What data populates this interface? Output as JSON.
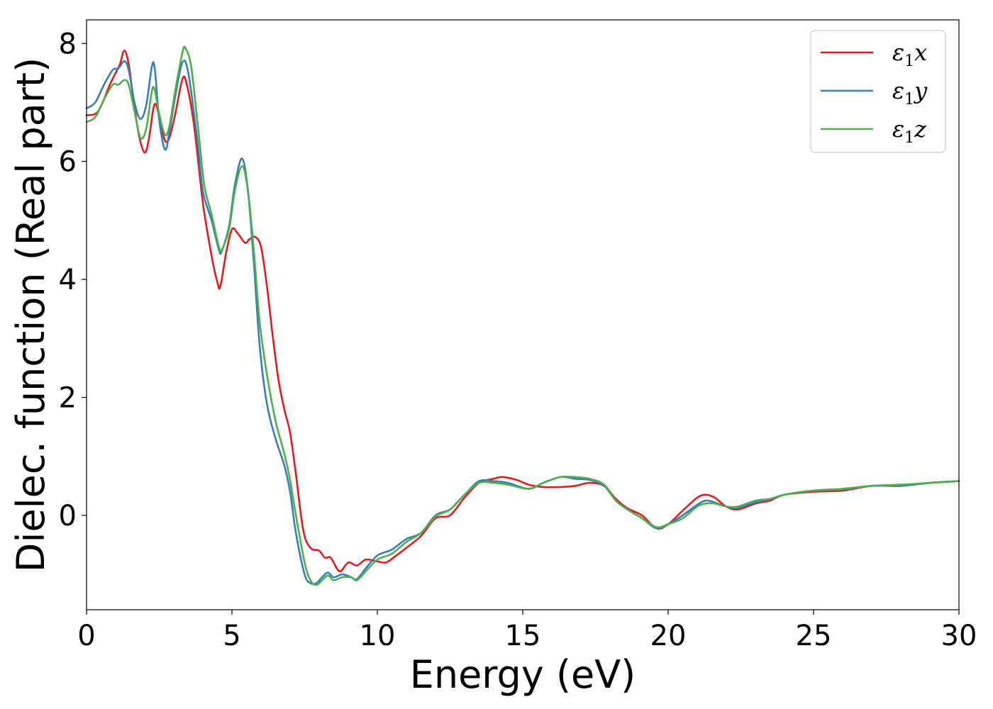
{
  "chart_data": {
    "type": "line",
    "title": "",
    "xlabel": "Energy (eV)",
    "ylabel": "Dielec. function (Real part)",
    "xlim": [
      0,
      30
    ],
    "ylim": [
      -1.6,
      8.4
    ],
    "xticks": [
      0,
      5,
      10,
      15,
      20,
      25,
      30
    ],
    "yticks": [
      0,
      2,
      4,
      6,
      8
    ],
    "grid": false,
    "legend_position": "top-right",
    "series": [
      {
        "name": "ε1x",
        "legend_base": "ε",
        "legend_sub": "1",
        "legend_var": "x",
        "color": "#e41a1c",
        "points": [
          [
            0,
            6.78
          ],
          [
            0.4,
            6.85
          ],
          [
            0.8,
            7.3
          ],
          [
            1.0,
            7.5
          ],
          [
            1.15,
            7.65
          ],
          [
            1.3,
            7.88
          ],
          [
            1.45,
            7.65
          ],
          [
            1.6,
            7.1
          ],
          [
            1.8,
            6.45
          ],
          [
            2.0,
            6.15
          ],
          [
            2.15,
            6.4
          ],
          [
            2.3,
            6.9
          ],
          [
            2.4,
            6.95
          ],
          [
            2.55,
            6.65
          ],
          [
            2.7,
            6.35
          ],
          [
            2.85,
            6.4
          ],
          [
            3.05,
            6.8
          ],
          [
            3.3,
            7.4
          ],
          [
            3.45,
            7.3
          ],
          [
            3.7,
            6.6
          ],
          [
            4.0,
            5.3
          ],
          [
            4.3,
            4.4
          ],
          [
            4.5,
            3.95
          ],
          [
            4.6,
            3.88
          ],
          [
            4.8,
            4.45
          ],
          [
            5.0,
            4.85
          ],
          [
            5.2,
            4.78
          ],
          [
            5.45,
            4.62
          ],
          [
            5.6,
            4.68
          ],
          [
            5.8,
            4.72
          ],
          [
            6.0,
            4.55
          ],
          [
            6.2,
            3.9
          ],
          [
            6.4,
            3.05
          ],
          [
            6.6,
            2.3
          ],
          [
            6.8,
            1.8
          ],
          [
            7.0,
            1.4
          ],
          [
            7.2,
            0.7
          ],
          [
            7.45,
            -0.25
          ],
          [
            7.7,
            -0.55
          ],
          [
            8.0,
            -0.6
          ],
          [
            8.2,
            -0.72
          ],
          [
            8.4,
            -0.72
          ],
          [
            8.7,
            -0.95
          ],
          [
            9.0,
            -0.8
          ],
          [
            9.3,
            -0.85
          ],
          [
            9.6,
            -0.75
          ],
          [
            10.0,
            -0.78
          ],
          [
            10.3,
            -0.8
          ],
          [
            10.6,
            -0.7
          ],
          [
            11.0,
            -0.55
          ],
          [
            11.5,
            -0.35
          ],
          [
            12.0,
            -0.05
          ],
          [
            12.5,
            0.0
          ],
          [
            13.0,
            0.3
          ],
          [
            13.5,
            0.55
          ],
          [
            14.0,
            0.62
          ],
          [
            14.3,
            0.65
          ],
          [
            14.8,
            0.6
          ],
          [
            15.2,
            0.52
          ],
          [
            15.7,
            0.48
          ],
          [
            16.3,
            0.48
          ],
          [
            16.8,
            0.5
          ],
          [
            17.3,
            0.55
          ],
          [
            17.8,
            0.5
          ],
          [
            18.2,
            0.28
          ],
          [
            18.6,
            0.12
          ],
          [
            19.1,
            0.0
          ],
          [
            19.6,
            -0.22
          ],
          [
            20.0,
            -0.15
          ],
          [
            20.5,
            0.08
          ],
          [
            21.0,
            0.3
          ],
          [
            21.3,
            0.35
          ],
          [
            21.6,
            0.3
          ],
          [
            22.0,
            0.15
          ],
          [
            22.4,
            0.1
          ],
          [
            23.0,
            0.2
          ],
          [
            23.5,
            0.25
          ],
          [
            24.0,
            0.35
          ],
          [
            25.0,
            0.4
          ],
          [
            26.0,
            0.42
          ],
          [
            27.0,
            0.5
          ],
          [
            28.0,
            0.5
          ],
          [
            29.0,
            0.55
          ],
          [
            30.0,
            0.58
          ]
        ]
      },
      {
        "name": "ε1y",
        "legend_base": "ε",
        "legend_sub": "1",
        "legend_var": "y",
        "color": "#377eb8",
        "points": [
          [
            0,
            6.9
          ],
          [
            0.3,
            7.0
          ],
          [
            0.6,
            7.3
          ],
          [
            0.9,
            7.55
          ],
          [
            1.1,
            7.58
          ],
          [
            1.3,
            7.7
          ],
          [
            1.45,
            7.55
          ],
          [
            1.65,
            7.0
          ],
          [
            1.85,
            6.72
          ],
          [
            2.05,
            6.95
          ],
          [
            2.25,
            7.62
          ],
          [
            2.35,
            7.55
          ],
          [
            2.5,
            6.7
          ],
          [
            2.7,
            6.2
          ],
          [
            2.85,
            6.5
          ],
          [
            3.05,
            7.1
          ],
          [
            3.3,
            7.68
          ],
          [
            3.5,
            7.5
          ],
          [
            3.8,
            6.4
          ],
          [
            4.0,
            5.5
          ],
          [
            4.3,
            5.0
          ],
          [
            4.55,
            4.5
          ],
          [
            4.65,
            4.48
          ],
          [
            4.9,
            4.9
          ],
          [
            5.1,
            5.6
          ],
          [
            5.35,
            6.05
          ],
          [
            5.55,
            5.5
          ],
          [
            5.75,
            4.3
          ],
          [
            5.95,
            2.9
          ],
          [
            6.2,
            1.9
          ],
          [
            6.5,
            1.3
          ],
          [
            6.8,
            0.85
          ],
          [
            7.0,
            0.4
          ],
          [
            7.2,
            -0.3
          ],
          [
            7.5,
            -1.0
          ],
          [
            7.7,
            -1.15
          ],
          [
            7.9,
            -1.15
          ],
          [
            8.1,
            -1.05
          ],
          [
            8.3,
            -0.97
          ],
          [
            8.5,
            -1.05
          ],
          [
            8.8,
            -1.0
          ],
          [
            9.1,
            -1.05
          ],
          [
            9.3,
            -1.08
          ],
          [
            9.6,
            -0.9
          ],
          [
            10.0,
            -0.68
          ],
          [
            10.5,
            -0.58
          ],
          [
            11.0,
            -0.4
          ],
          [
            11.5,
            -0.3
          ],
          [
            12.0,
            0.0
          ],
          [
            12.5,
            0.1
          ],
          [
            13.0,
            0.35
          ],
          [
            13.5,
            0.58
          ],
          [
            14.0,
            0.58
          ],
          [
            14.5,
            0.55
          ],
          [
            15.2,
            0.45
          ],
          [
            15.7,
            0.55
          ],
          [
            16.3,
            0.65
          ],
          [
            16.8,
            0.62
          ],
          [
            17.3,
            0.6
          ],
          [
            17.8,
            0.5
          ],
          [
            18.2,
            0.25
          ],
          [
            18.6,
            0.1
          ],
          [
            19.1,
            -0.05
          ],
          [
            19.6,
            -0.22
          ],
          [
            20.0,
            -0.15
          ],
          [
            20.5,
            0.0
          ],
          [
            21.0,
            0.18
          ],
          [
            21.3,
            0.25
          ],
          [
            21.6,
            0.22
          ],
          [
            22.0,
            0.15
          ],
          [
            22.4,
            0.13
          ],
          [
            23.0,
            0.22
          ],
          [
            23.5,
            0.27
          ],
          [
            24.0,
            0.35
          ],
          [
            25.0,
            0.42
          ],
          [
            26.0,
            0.44
          ],
          [
            27.0,
            0.5
          ],
          [
            28.0,
            0.5
          ],
          [
            29.0,
            0.55
          ],
          [
            30.0,
            0.58
          ]
        ]
      },
      {
        "name": "ε1z",
        "legend_base": "ε",
        "legend_sub": "1",
        "legend_var": "z",
        "color": "#4daf4a",
        "points": [
          [
            0,
            6.67
          ],
          [
            0.3,
            6.75
          ],
          [
            0.6,
            7.05
          ],
          [
            0.9,
            7.3
          ],
          [
            1.1,
            7.3
          ],
          [
            1.3,
            7.38
          ],
          [
            1.45,
            7.3
          ],
          [
            1.65,
            6.85
          ],
          [
            1.85,
            6.4
          ],
          [
            2.05,
            6.55
          ],
          [
            2.25,
            7.2
          ],
          [
            2.35,
            7.2
          ],
          [
            2.5,
            6.8
          ],
          [
            2.7,
            6.45
          ],
          [
            2.85,
            6.6
          ],
          [
            3.05,
            7.2
          ],
          [
            3.3,
            7.85
          ],
          [
            3.4,
            7.92
          ],
          [
            3.6,
            7.6
          ],
          [
            3.85,
            6.5
          ],
          [
            4.05,
            5.6
          ],
          [
            4.3,
            5.1
          ],
          [
            4.55,
            4.55
          ],
          [
            4.65,
            4.5
          ],
          [
            4.9,
            4.85
          ],
          [
            5.1,
            5.5
          ],
          [
            5.35,
            5.92
          ],
          [
            5.55,
            5.5
          ],
          [
            5.75,
            4.5
          ],
          [
            5.95,
            3.3
          ],
          [
            6.2,
            2.4
          ],
          [
            6.5,
            1.6
          ],
          [
            6.8,
            1.05
          ],
          [
            7.0,
            0.6
          ],
          [
            7.2,
            0.0
          ],
          [
            7.5,
            -0.8
          ],
          [
            7.7,
            -1.1
          ],
          [
            7.9,
            -1.18
          ],
          [
            8.1,
            -1.1
          ],
          [
            8.3,
            -1.02
          ],
          [
            8.5,
            -1.1
          ],
          [
            8.8,
            -1.05
          ],
          [
            9.1,
            -1.05
          ],
          [
            9.3,
            -1.1
          ],
          [
            9.6,
            -0.95
          ],
          [
            10.0,
            -0.75
          ],
          [
            10.5,
            -0.65
          ],
          [
            11.0,
            -0.45
          ],
          [
            11.5,
            -0.3
          ],
          [
            12.0,
            -0.02
          ],
          [
            12.5,
            0.1
          ],
          [
            13.0,
            0.35
          ],
          [
            13.5,
            0.55
          ],
          [
            14.0,
            0.55
          ],
          [
            14.5,
            0.52
          ],
          [
            15.2,
            0.45
          ],
          [
            15.7,
            0.55
          ],
          [
            16.3,
            0.65
          ],
          [
            16.8,
            0.65
          ],
          [
            17.3,
            0.62
          ],
          [
            17.8,
            0.52
          ],
          [
            18.2,
            0.25
          ],
          [
            18.6,
            0.1
          ],
          [
            19.1,
            -0.05
          ],
          [
            19.6,
            -0.2
          ],
          [
            20.0,
            -0.15
          ],
          [
            20.5,
            -0.05
          ],
          [
            21.0,
            0.15
          ],
          [
            21.3,
            0.2
          ],
          [
            21.6,
            0.2
          ],
          [
            22.0,
            0.15
          ],
          [
            22.4,
            0.15
          ],
          [
            23.0,
            0.25
          ],
          [
            23.5,
            0.28
          ],
          [
            24.0,
            0.35
          ],
          [
            25.0,
            0.42
          ],
          [
            26.0,
            0.45
          ],
          [
            27.0,
            0.5
          ],
          [
            28.0,
            0.52
          ],
          [
            29.0,
            0.55
          ],
          [
            30.0,
            0.58
          ]
        ]
      }
    ]
  }
}
